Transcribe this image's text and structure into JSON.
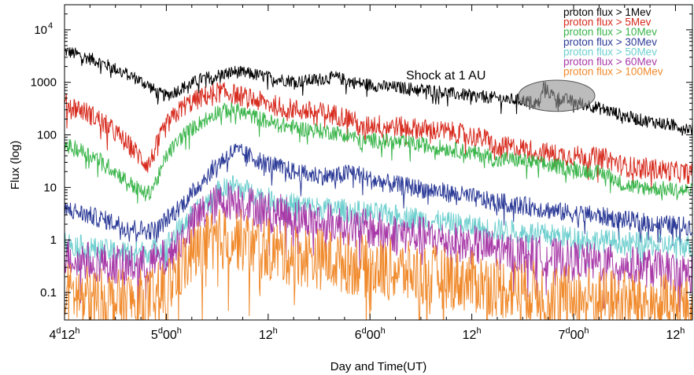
{
  "chart_data": {
    "type": "line",
    "title": "",
    "xlabel": "Day and Time(UT)",
    "ylabel": "Flux (log)",
    "y_scale": "log",
    "ylim": [
      0.03,
      30000
    ],
    "x_unit": "hours since day 4 00h UT",
    "xlim": [
      12,
      86
    ],
    "grid": false,
    "legend_position": "top-right",
    "x_ticks": [
      {
        "x": 12,
        "day": "4",
        "time": "12",
        "unit": "h"
      },
      {
        "x": 24,
        "day": "5",
        "time": "00",
        "unit": "h"
      },
      {
        "x": 36,
        "day": "",
        "time": "12",
        "unit": "h"
      },
      {
        "x": 48,
        "day": "6",
        "time": "00",
        "unit": "h"
      },
      {
        "x": 60,
        "day": "",
        "time": "12",
        "unit": "h"
      },
      {
        "x": 72,
        "day": "7",
        "time": "00",
        "unit": "h"
      },
      {
        "x": 84,
        "day": "",
        "time": "12",
        "unit": "h"
      }
    ],
    "y_ticks": [
      {
        "value": 0.1,
        "label": "0.1"
      },
      {
        "value": 1,
        "label": "1"
      },
      {
        "value": 10,
        "label": "10"
      },
      {
        "value": 100,
        "label": "100"
      },
      {
        "value": 1000,
        "label": "1000"
      },
      {
        "value": 10000,
        "label": "10",
        "sup": "4"
      }
    ],
    "annotation": {
      "text": "Shock at 1 AU",
      "ellipse_x": [
        65.5,
        74.5
      ],
      "ellipse_y": [
        280,
        1100
      ]
    },
    "series": [
      {
        "name": "proton flux > 1Mev",
        "color": "#000000",
        "x": [
          12,
          14,
          16,
          18,
          20,
          22,
          23,
          24,
          26,
          28,
          30,
          32,
          34,
          36,
          38,
          40,
          42,
          44,
          46,
          48,
          50,
          52,
          54,
          56,
          58,
          60,
          62,
          63,
          64,
          66,
          68,
          68.5,
          69,
          70,
          72,
          74,
          76,
          78,
          80,
          82,
          84,
          86
        ],
        "y": [
          4000,
          3200,
          2500,
          1800,
          1300,
          850,
          620,
          550,
          800,
          1150,
          1350,
          1600,
          1450,
          1250,
          1100,
          1050,
          1150,
          1250,
          1000,
          900,
          820,
          780,
          740,
          680,
          600,
          560,
          520,
          500,
          480,
          450,
          400,
          900,
          650,
          520,
          430,
          360,
          290,
          230,
          190,
          170,
          150,
          130
        ],
        "noise": 0.12
      },
      {
        "name": "proton flux > 5Mev",
        "color": "#d72b1e",
        "x": [
          12,
          14,
          16,
          18,
          20,
          21.5,
          22,
          23,
          24,
          26,
          28,
          30,
          32,
          34,
          36,
          38,
          40,
          42,
          44,
          46,
          47,
          48,
          50,
          52,
          54,
          56,
          58,
          60,
          62,
          63,
          64,
          66,
          68,
          70,
          72,
          74,
          76,
          78,
          80,
          82,
          84,
          86
        ],
        "y": [
          400,
          300,
          200,
          110,
          55,
          30,
          28,
          70,
          150,
          350,
          500,
          650,
          600,
          480,
          390,
          330,
          290,
          270,
          240,
          200,
          120,
          160,
          150,
          140,
          130,
          120,
          110,
          95,
          80,
          50,
          60,
          55,
          48,
          42,
          40,
          38,
          35,
          25,
          24,
          22,
          20,
          18
        ],
        "noise": 0.2
      },
      {
        "name": "proton flux > 10Mev",
        "color": "#3ab54a",
        "x": [
          12,
          14,
          16,
          18,
          20,
          21.5,
          22,
          23,
          24,
          26,
          28,
          30,
          32,
          34,
          36,
          38,
          40,
          42,
          44,
          46,
          47,
          48,
          50,
          52,
          54,
          56,
          58,
          60,
          62,
          63,
          64,
          66,
          68,
          70,
          72,
          74,
          76,
          78,
          80,
          82,
          84,
          86
        ],
        "y": [
          65,
          50,
          35,
          20,
          11,
          7.5,
          8,
          15,
          40,
          100,
          170,
          280,
          300,
          230,
          180,
          150,
          130,
          120,
          110,
          95,
          70,
          80,
          75,
          70,
          65,
          58,
          52,
          45,
          40,
          30,
          35,
          32,
          28,
          25,
          23,
          20,
          18,
          11,
          10,
          9.5,
          9,
          8.5
        ],
        "noise": 0.15
      },
      {
        "name": "proton flux > 30Mev",
        "color": "#2b3a97",
        "x": [
          12,
          14,
          16,
          18,
          20,
          22,
          23,
          24,
          26,
          28,
          30,
          32,
          34,
          36,
          38,
          40,
          42,
          44,
          46,
          48,
          50,
          52,
          54,
          56,
          58,
          60,
          62,
          64,
          66,
          68,
          70,
          72,
          74,
          76,
          78,
          80,
          82,
          84,
          86
        ],
        "y": [
          4,
          3.2,
          2.6,
          2.1,
          1.7,
          1.5,
          1.6,
          2.5,
          5,
          12,
          28,
          50,
          38,
          28,
          22,
          18,
          17,
          16,
          20,
          14,
          12,
          10.5,
          9.5,
          8.5,
          7.5,
          6.5,
          5.5,
          5,
          4.5,
          4,
          3.5,
          3.2,
          3,
          2.7,
          2.4,
          2.2,
          2,
          1.9,
          1.8
        ],
        "noise": 0.18
      },
      {
        "name": "proton flux > 50Mev",
        "color": "#6fcfcf",
        "x": [
          12,
          14,
          16,
          18,
          20,
          22,
          24,
          26,
          28,
          30,
          32,
          34,
          36,
          38,
          40,
          42,
          44,
          46,
          48,
          50,
          52,
          54,
          56,
          58,
          60,
          62,
          64,
          66,
          68,
          70,
          72,
          74,
          76,
          78,
          80,
          82,
          84,
          86
        ],
        "y": [
          0.9,
          0.75,
          0.65,
          0.6,
          0.58,
          0.6,
          0.8,
          2,
          4,
          8,
          11,
          8,
          6,
          5,
          4.5,
          4,
          3.8,
          3.5,
          3.2,
          3,
          2.8,
          2.5,
          2.2,
          2,
          1.8,
          1.6,
          1.5,
          1.4,
          1.3,
          1.2,
          1.1,
          1,
          0.95,
          0.9,
          0.85,
          0.8,
          0.78,
          0.75
        ],
        "noise": 0.22
      },
      {
        "name": "proton flux > 60Mev",
        "color": "#a83aa8",
        "x": [
          12,
          14,
          16,
          18,
          20,
          22,
          24,
          26,
          28,
          30,
          32,
          34,
          36,
          38,
          40,
          42,
          44,
          46,
          48,
          50,
          52,
          54,
          56,
          58,
          60,
          62,
          64,
          66,
          68,
          70,
          72,
          74,
          76,
          78,
          80,
          82,
          84,
          86
        ],
        "y": [
          0.5,
          0.42,
          0.38,
          0.35,
          0.33,
          0.34,
          0.45,
          1.2,
          3,
          5,
          6,
          4.5,
          3.5,
          3,
          2.6,
          2.3,
          2,
          1.8,
          1.6,
          1.4,
          1.3,
          1.2,
          1,
          0.9,
          0.8,
          0.7,
          0.6,
          0.55,
          0.5,
          0.45,
          0.4,
          0.38,
          0.35,
          0.33,
          0.3,
          0.28,
          0.25,
          0.22
        ],
        "noise": 0.38
      },
      {
        "name": "proton flux > 100Mev",
        "color": "#f08a2c",
        "x": [
          12,
          14,
          16,
          18,
          20,
          22,
          24,
          26,
          28,
          30,
          32,
          34,
          36,
          38,
          40,
          42,
          44,
          46,
          48,
          50,
          52,
          54,
          56,
          58,
          60,
          62,
          64,
          66,
          68,
          70,
          72,
          74,
          76,
          78,
          80,
          82,
          84,
          86
        ],
        "y": [
          0.1,
          0.085,
          0.075,
          0.07,
          0.07,
          0.075,
          0.12,
          0.35,
          0.7,
          1,
          1.1,
          0.8,
          0.65,
          0.55,
          0.5,
          0.45,
          0.4,
          0.35,
          0.3,
          0.27,
          0.25,
          0.22,
          0.2,
          0.18,
          0.16,
          0.14,
          0.12,
          0.11,
          0.1,
          0.09,
          0.085,
          0.08,
          0.075,
          0.07,
          0.065,
          0.06,
          0.055,
          0.05
        ],
        "noise": 0.6
      }
    ]
  }
}
